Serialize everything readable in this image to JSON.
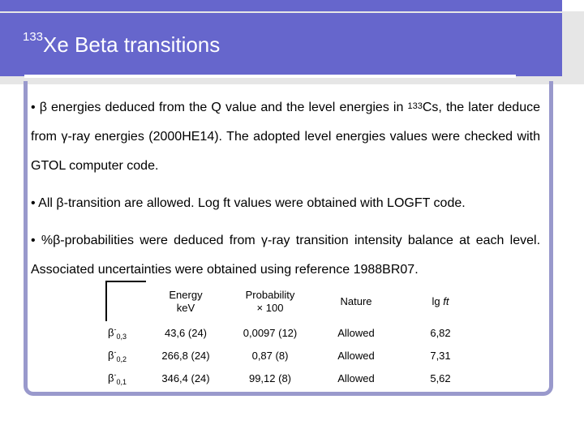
{
  "title": {
    "superscript": "133",
    "text": "Xe Beta transitions"
  },
  "paragraphs": [
    {
      "bullet": "•",
      "beta": "β",
      "part1": " energies deduced from the Q value and the level energies in ",
      "sup": "133",
      "part2": "Cs, the later deduce from ",
      "gamma": "γ",
      "part3": "-ray energies (2000HE14). The adopted level energies values were checked with GTOL computer code."
    },
    {
      "bullet": "•",
      "part1": " All ",
      "beta": "β",
      "part2": "-transition are allowed. Log ft values were obtained with LOGFT code."
    },
    {
      "bullet": "•",
      "part1": " %",
      "beta": "β",
      "part2": "-probabilities were deduced from ",
      "gamma": "γ",
      "part3": "-ray transition intensity balance at each level. Associated uncertainties were obtained using reference 1988BR07."
    }
  ],
  "table": {
    "headers": {
      "energy_l1": "Energy",
      "energy_l2": "keV",
      "prob_l1": "Probability",
      "prob_l2": "× 100",
      "nature": "Nature",
      "lgft_prefix": "lg ",
      "lgft_italic": "ft"
    },
    "rows": [
      {
        "label_base": "β",
        "label_sup": "-",
        "label_sub": "0,3",
        "energy": "43,6 (24)",
        "probability": "0,0097 (12)",
        "nature": "Allowed",
        "lgft": "6,82"
      },
      {
        "label_base": "β",
        "label_sup": "-",
        "label_sub": "0,2",
        "energy": "266,8 (24)",
        "probability": "0,87 (8)",
        "nature": "Allowed",
        "lgft": "7,31"
      },
      {
        "label_base": "β",
        "label_sup": "-",
        "label_sub": "0,1",
        "energy": "346,4 (24)",
        "probability": "99,12 (8)",
        "nature": "Allowed",
        "lgft": "5,62"
      }
    ]
  },
  "colors": {
    "title_bar": "#6666cc",
    "frame": "#9999cc"
  }
}
